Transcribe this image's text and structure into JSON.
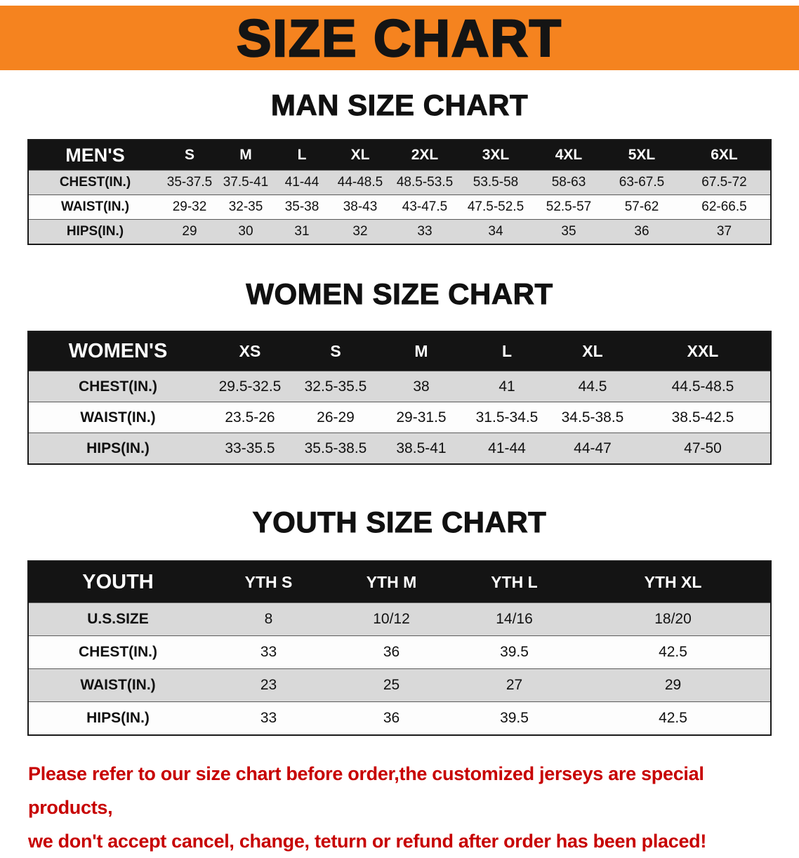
{
  "banner": {
    "title": "SIZE CHART"
  },
  "sections": [
    {
      "heading": "MAN SIZE CHART",
      "table": {
        "label": "MEN'S",
        "columns": [
          "S",
          "M",
          "L",
          "XL",
          "2XL",
          "3XL",
          "4XL",
          "5XL",
          "6XL"
        ],
        "rows": [
          {
            "label": "CHEST(IN.)",
            "values": [
              "35-37.5",
              "37.5-41",
              "41-44",
              "44-48.5",
              "48.5-53.5",
              "53.5-58",
              "58-63",
              "63-67.5",
              "67.5-72"
            ]
          },
          {
            "label": "WAIST(IN.)",
            "values": [
              "29-32",
              "32-35",
              "35-38",
              "38-43",
              "43-47.5",
              "47.5-52.5",
              "52.5-57",
              "57-62",
              "62-66.5"
            ]
          },
          {
            "label": "HIPS(IN.)",
            "values": [
              "29",
              "30",
              "31",
              "32",
              "33",
              "34",
              "35",
              "36",
              "37"
            ]
          }
        ]
      }
    },
    {
      "heading": "WOMEN SIZE CHART",
      "table": {
        "label": "WOMEN'S",
        "columns": [
          "XS",
          "S",
          "M",
          "L",
          "XL",
          "XXL"
        ],
        "rows": [
          {
            "label": "CHEST(IN.)",
            "values": [
              "29.5-32.5",
              "32.5-35.5",
              "38",
              "41",
              "44.5",
              "44.5-48.5"
            ]
          },
          {
            "label": "WAIST(IN.)",
            "values": [
              "23.5-26",
              "26-29",
              "29-31.5",
              "31.5-34.5",
              "34.5-38.5",
              "38.5-42.5"
            ]
          },
          {
            "label": "HIPS(IN.)",
            "values": [
              "33-35.5",
              "35.5-38.5",
              "38.5-41",
              "41-44",
              "44-47",
              "47-50"
            ]
          }
        ]
      }
    },
    {
      "heading": "YOUTH SIZE CHART",
      "table": {
        "label": "YOUTH",
        "columns": [
          "YTH S",
          "YTH M",
          "YTH L",
          "YTH XL"
        ],
        "rows": [
          {
            "label": "U.S.SIZE",
            "values": [
              "8",
              "10/12",
              "14/16",
              "18/20"
            ]
          },
          {
            "label": "CHEST(IN.)",
            "values": [
              "33",
              "36",
              "39.5",
              "42.5"
            ]
          },
          {
            "label": "WAIST(IN.)",
            "values": [
              "23",
              "25",
              "27",
              "29"
            ]
          },
          {
            "label": "HIPS(IN.)",
            "values": [
              "33",
              "36",
              "39.5",
              "42.5"
            ]
          }
        ]
      }
    }
  ],
  "footer": {
    "line1": "Please refer to our size chart before order,the customized jerseys are special products,",
    "line2": "we don't accept cancel, change, teturn or refund after order has been placed!"
  },
  "colors": {
    "banner_bg": "#F5831F",
    "table_header_bg": "#141414",
    "stripe_bg": "#D9D9D9",
    "footer_text": "#C70000"
  }
}
